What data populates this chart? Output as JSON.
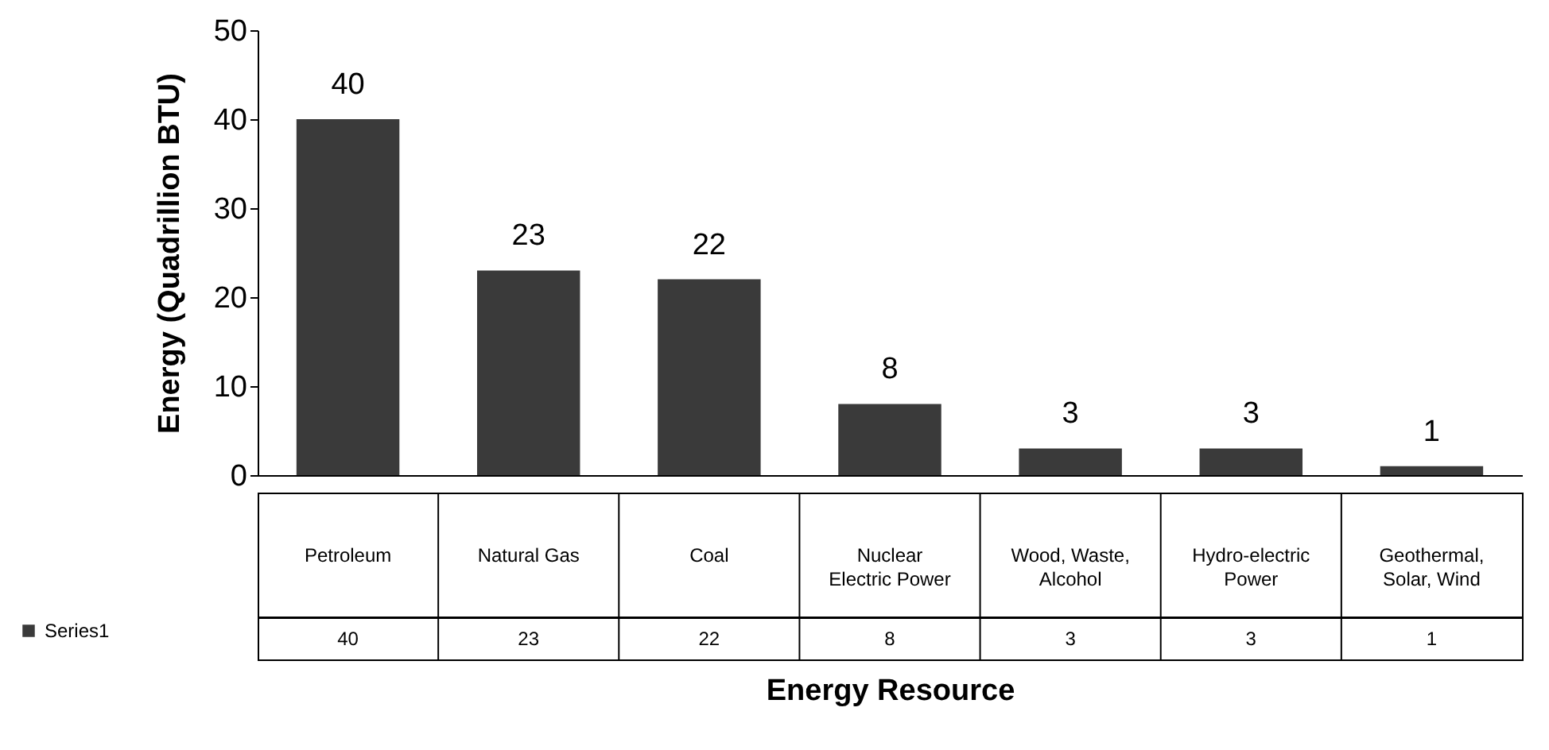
{
  "chart_data": {
    "type": "bar",
    "xlabel": "Energy Resource",
    "ylabel": "Energy (Quadrillion BTU)",
    "categories": [
      "Petroleum",
      "Natural Gas",
      "Coal",
      "Nuclear Electric Power",
      "Wood, Waste, Alcohol",
      "Hydro-electric Power",
      "Geothermal, Solar, Wind"
    ],
    "series": [
      {
        "name": "Series1",
        "color": "#3a3a3a",
        "values": [
          40,
          23,
          22,
          8,
          3,
          3,
          1
        ]
      }
    ],
    "ylim": [
      0,
      50
    ],
    "yticks": [
      0,
      10,
      20,
      30,
      40,
      50
    ],
    "grid": false,
    "data_labels": true,
    "annotations": [
      {
        "text": "40",
        "x": "Petroleum",
        "y": 40
      },
      {
        "text": "23",
        "x": "Natural Gas",
        "y": 23
      },
      {
        "text": "22",
        "x": "Coal",
        "y": 22
      },
      {
        "text": "8",
        "x": "Nuclear Electric Power",
        "y": 8
      },
      {
        "text": "3",
        "x": "Wood, Waste, Alcohol",
        "y": 3
      },
      {
        "text": "3",
        "x": "Hydro-electric Power",
        "y": 3
      },
      {
        "text": "1",
        "x": "Geothermal, Solar, Wind",
        "y": 1
      }
    ]
  }
}
